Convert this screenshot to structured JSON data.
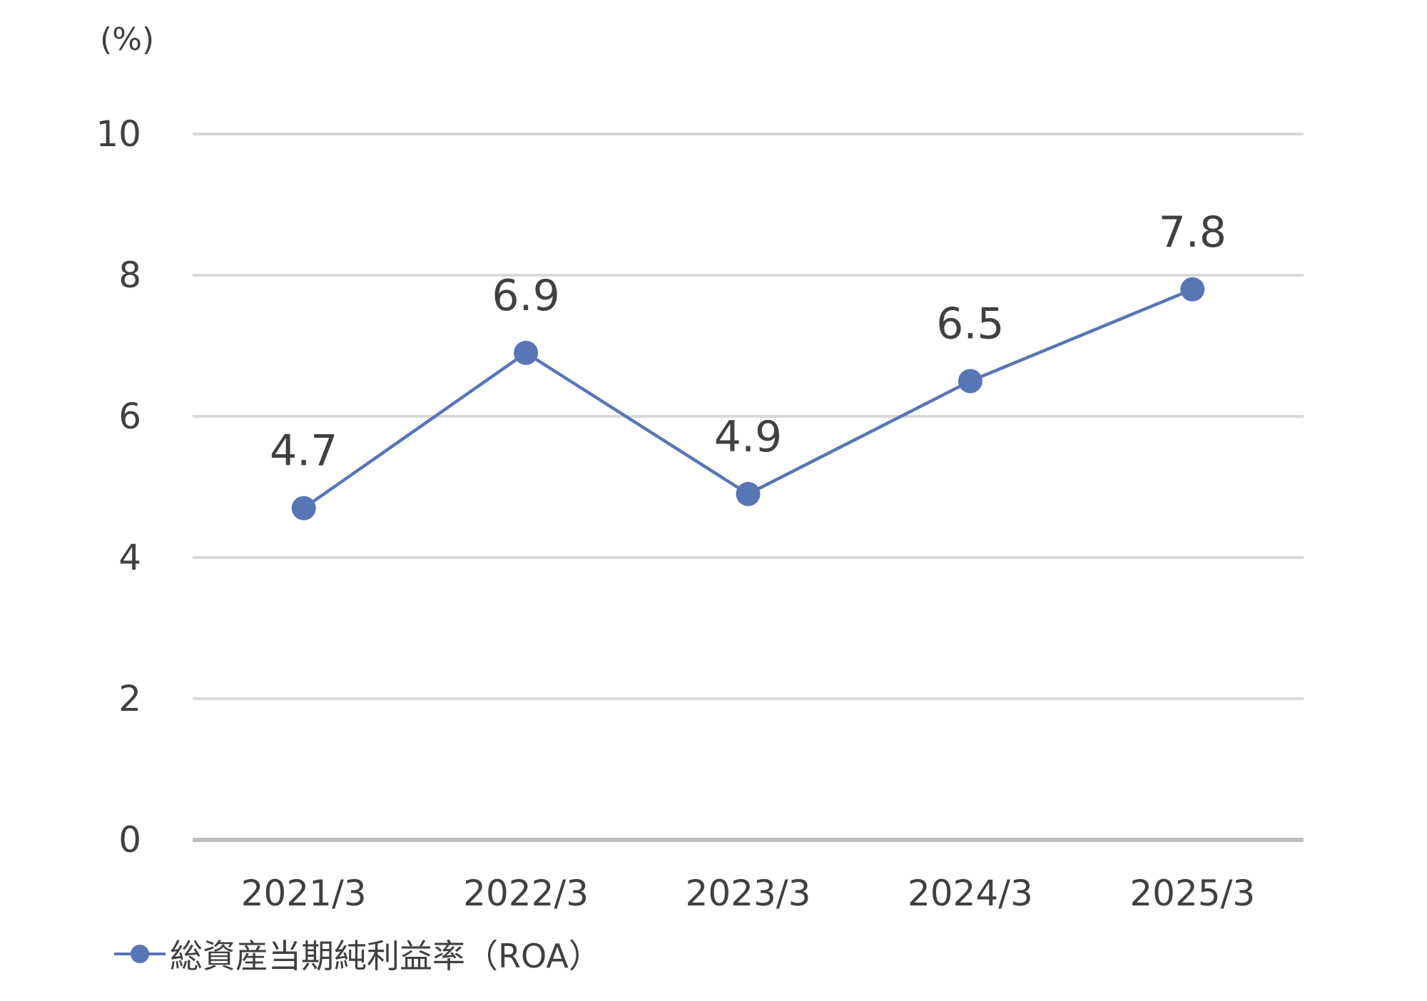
{
  "chart_data": {
    "type": "line",
    "ylabel": "(%)",
    "ylim": [
      0,
      10
    ],
    "yticks": [
      "0",
      "2",
      "4",
      "6",
      "8",
      "10"
    ],
    "categories": [
      "2021/3",
      "2022/3",
      "2023/3",
      "2024/3",
      "2025/3"
    ],
    "series": [
      {
        "name": "総資産当期純利益率（ROA）",
        "values": [
          4.7,
          6.9,
          4.9,
          6.5,
          7.8
        ],
        "labels": [
          "4.7",
          "6.9",
          "4.9",
          "6.5",
          "7.8"
        ]
      }
    ],
    "grid": true,
    "data_labels": true,
    "legend_position": "bottom-left",
    "colors": {
      "series": "#5875b5",
      "grid": "#d9d9d9",
      "axis": "#bfbfbf",
      "text": "#404040"
    }
  }
}
